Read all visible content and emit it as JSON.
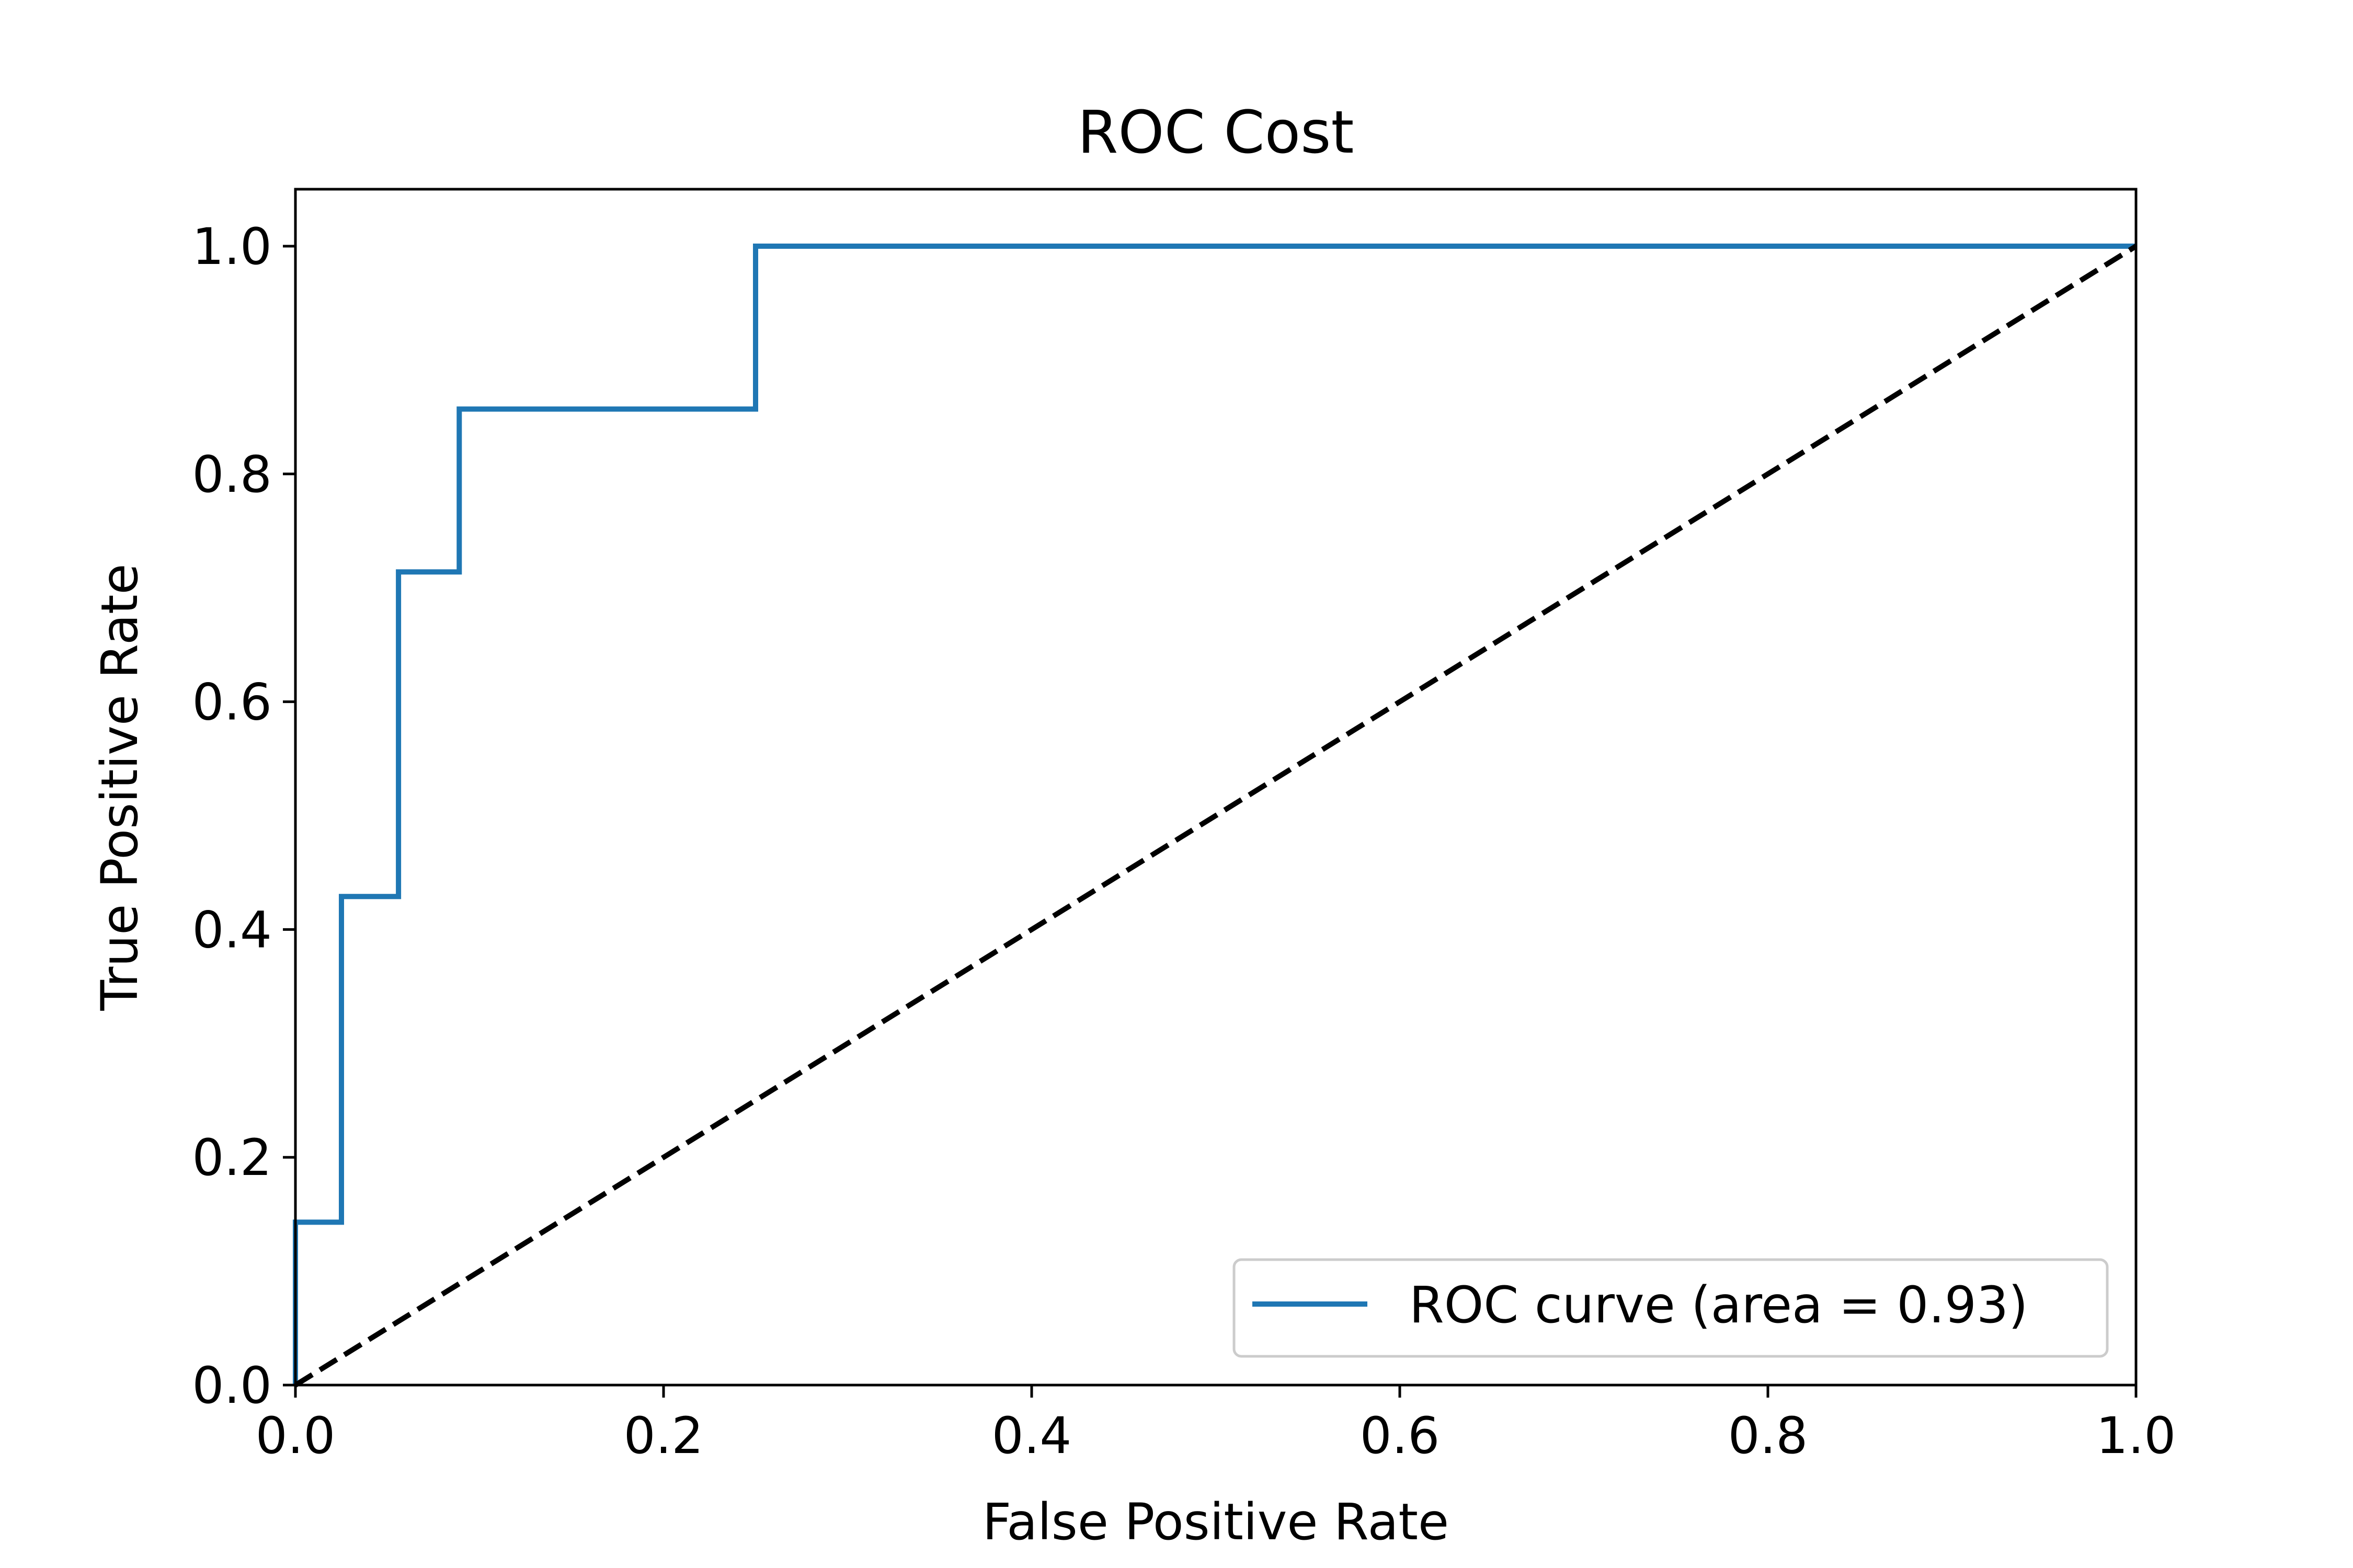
{
  "chart_data": {
    "type": "line",
    "title": "ROC Cost",
    "xlabel": "False Positive Rate",
    "ylabel": "True Positive Rate",
    "xlim": [
      0.0,
      1.0
    ],
    "ylim": [
      0.0,
      1.05
    ],
    "grid": false,
    "legend_position": "bottom-right",
    "xticks": [
      "0.0",
      "0.2",
      "0.4",
      "0.6",
      "0.8",
      "1.0"
    ],
    "yticks": [
      "0.0",
      "0.2",
      "0.4",
      "0.6",
      "0.8",
      "1.0"
    ],
    "series": [
      {
        "name": "ROC curve (area = 0.93)",
        "color": "#1f77b4",
        "style": "solid",
        "x": [
          0.0,
          0.0,
          0.025,
          0.025,
          0.056,
          0.056,
          0.089,
          0.089,
          0.25,
          0.25,
          1.0
        ],
        "y": [
          0.0,
          0.143,
          0.143,
          0.429,
          0.429,
          0.714,
          0.714,
          0.857,
          0.857,
          1.0,
          1.0
        ]
      },
      {
        "color": "#000000",
        "style": "dashed",
        "x": [
          0.0,
          1.0
        ],
        "y": [
          0.0,
          1.0
        ]
      }
    ]
  }
}
